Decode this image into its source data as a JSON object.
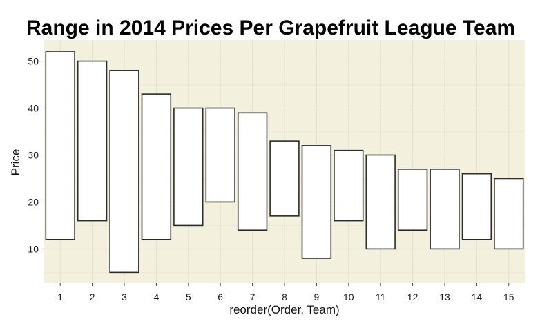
{
  "chart_data": {
    "type": "bar",
    "subtype": "floating-range",
    "title": "Range in 2014 Prices Per Grapefruit League Team",
    "xlabel": "reorder(Order, Team)",
    "ylabel": "Price",
    "categories": [
      "1",
      "2",
      "3",
      "4",
      "5",
      "6",
      "7",
      "8",
      "9",
      "10",
      "11",
      "12",
      "13",
      "14",
      "15"
    ],
    "ranges": [
      [
        12,
        52
      ],
      [
        16,
        50
      ],
      [
        5,
        48
      ],
      [
        12,
        43
      ],
      [
        15,
        40
      ],
      [
        20,
        40
      ],
      [
        14,
        39
      ],
      [
        17,
        33
      ],
      [
        8,
        32
      ],
      [
        16,
        31
      ],
      [
        10,
        30
      ],
      [
        14,
        27
      ],
      [
        10,
        27
      ],
      [
        12,
        26
      ],
      [
        10,
        25
      ]
    ],
    "ylim": [
      2.7,
      54.5
    ],
    "yticks": [
      10,
      20,
      30,
      40,
      50
    ],
    "grid": true,
    "colors": {
      "panel_background": "#f3f1de",
      "grid": "#e6e3d0",
      "bar_fill": "#ffffff",
      "bar_stroke": "#2b2b2b"
    }
  }
}
